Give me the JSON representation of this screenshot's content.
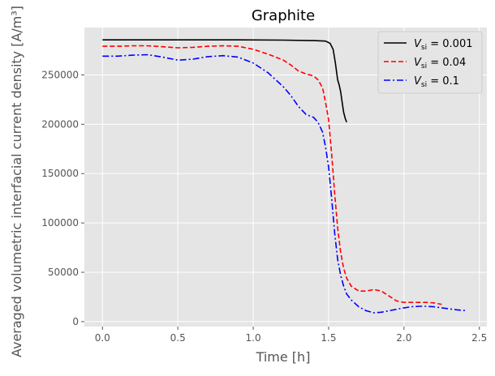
{
  "chart_data": {
    "type": "line",
    "title": "Graphite",
    "xlabel": "Time [h]",
    "ylabel": "Averaged volumetric interfacial current density [A/m³]",
    "xlim": [
      -0.12,
      2.55
    ],
    "ylim": [
      -5000,
      298000
    ],
    "xticks": [
      0.0,
      0.5,
      1.0,
      1.5,
      2.0,
      2.5
    ],
    "xtick_labels": [
      "0.0",
      "0.5",
      "1.0",
      "1.5",
      "2.0",
      "2.5"
    ],
    "yticks": [
      0,
      50000,
      100000,
      150000,
      200000,
      250000
    ],
    "ytick_labels": [
      "0",
      "50000",
      "100000",
      "150000",
      "200000",
      "250000"
    ],
    "grid": true,
    "legend_position": "top-right",
    "colors": {
      "background": "#e5e5e5",
      "grid": "#ffffff",
      "text": "#555555",
      "title": "#000000"
    },
    "series": [
      {
        "name": "V_si = 0.001",
        "legend_label": {
          "main": "V",
          "sub": "si",
          "rest": " = 0.001"
        },
        "color": "#000000",
        "dash": "solid",
        "x": [
          0.0,
          0.3,
          0.6,
          0.9,
          1.2,
          1.4,
          1.48,
          1.51,
          1.53,
          1.545,
          1.56,
          1.57,
          1.58,
          1.59,
          1.6,
          1.61,
          1.62
        ],
        "y": [
          285500,
          285500,
          285500,
          285500,
          285300,
          284800,
          284300,
          282000,
          276000,
          262000,
          245000,
          240000,
          233000,
          222000,
          212000,
          206000,
          202000
        ]
      },
      {
        "name": "V_si = 0.04",
        "legend_label": {
          "main": "V",
          "sub": "si",
          "rest": " = 0.04"
        },
        "color": "#ff0000",
        "dash": "dashed",
        "x": [
          0.0,
          0.1,
          0.2,
          0.3,
          0.4,
          0.5,
          0.6,
          0.7,
          0.8,
          0.9,
          1.0,
          1.1,
          1.2,
          1.25,
          1.3,
          1.35,
          1.4,
          1.43,
          1.46,
          1.48,
          1.5,
          1.52,
          1.54,
          1.56,
          1.58,
          1.6,
          1.62,
          1.65,
          1.7,
          1.75,
          1.8,
          1.85,
          1.9,
          1.95,
          2.0,
          2.05,
          2.1,
          2.15,
          2.2,
          2.25
        ],
        "y": [
          279000,
          279000,
          279500,
          279500,
          278500,
          277500,
          278000,
          279000,
          279500,
          279000,
          276000,
          271000,
          265000,
          260000,
          254000,
          251000,
          249000,
          245000,
          237000,
          222000,
          205000,
          170000,
          130000,
          95000,
          70000,
          54000,
          44000,
          36000,
          31000,
          31000,
          32500,
          31000,
          26000,
          21000,
          19500,
          19500,
          19500,
          19500,
          19000,
          17500
        ]
      },
      {
        "name": "V_si = 0.1",
        "legend_label": {
          "main": "V",
          "sub": "si",
          "rest": " = 0.1"
        },
        "color": "#0000ff",
        "dash": "dashdot",
        "x": [
          0.0,
          0.1,
          0.2,
          0.3,
          0.4,
          0.5,
          0.6,
          0.7,
          0.8,
          0.9,
          1.0,
          1.1,
          1.2,
          1.25,
          1.3,
          1.35,
          1.4,
          1.43,
          1.46,
          1.48,
          1.5,
          1.52,
          1.54,
          1.56,
          1.58,
          1.6,
          1.62,
          1.65,
          1.7,
          1.75,
          1.8,
          1.85,
          1.9,
          1.95,
          2.0,
          2.05,
          2.1,
          2.15,
          2.2,
          2.25,
          2.3,
          2.35,
          2.42
        ],
        "y": [
          269000,
          269000,
          270000,
          270500,
          268000,
          265000,
          266000,
          268500,
          269500,
          268000,
          262000,
          252000,
          238000,
          229000,
          218000,
          210000,
          207000,
          202000,
          192000,
          177000,
          157000,
          125000,
          90000,
          63000,
          47000,
          36000,
          28000,
          22000,
          15000,
          11000,
          9000,
          9500,
          11000,
          12500,
          14000,
          15000,
          15500,
          15500,
          15000,
          14000,
          13000,
          12000,
          11000
        ]
      }
    ]
  }
}
